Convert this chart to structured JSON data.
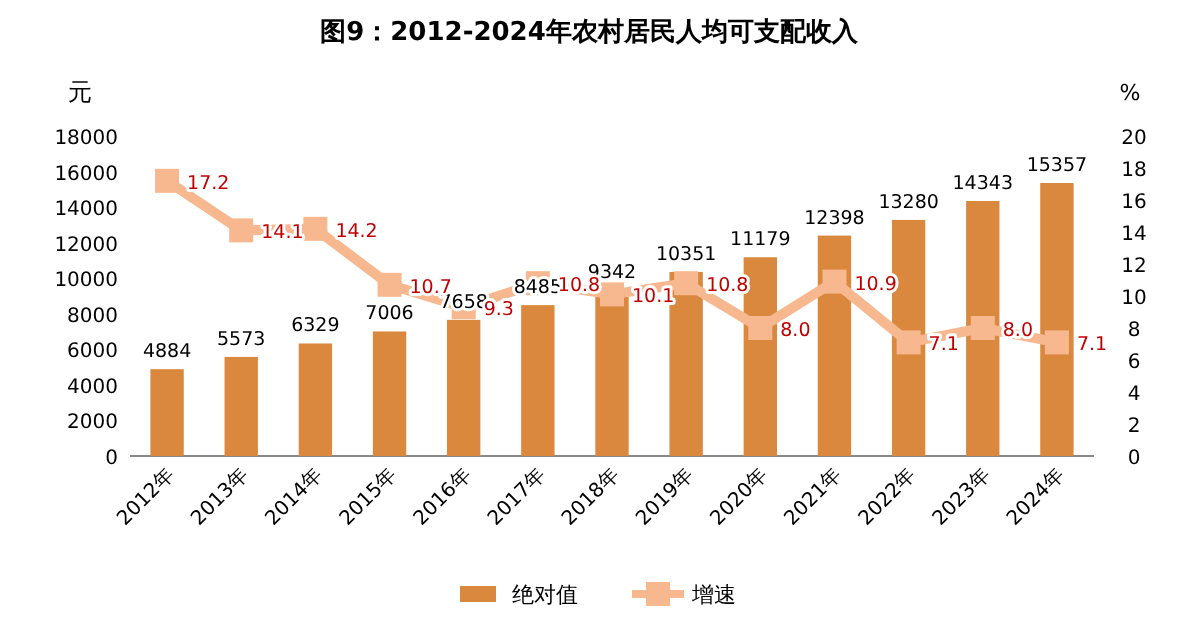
{
  "chart_data": {
    "type": "bar",
    "title": "图9：2012-2024年农村居民人均可支配收入",
    "ylabel": "元",
    "y2label": "%",
    "categories": [
      "2012年",
      "2013年",
      "2014年",
      "2015年",
      "2016年",
      "2017年",
      "2018年",
      "2019年",
      "2020年",
      "2021年",
      "2022年",
      "2023年",
      "2024年"
    ],
    "series": [
      {
        "name": "绝对值",
        "color": "#d9883e",
        "values": [
          4884,
          5573,
          6329,
          7006,
          7658,
          8485,
          9342,
          10351,
          11179,
          12398,
          13280,
          14343,
          15357
        ]
      },
      {
        "name": "增速",
        "type": "line",
        "axis": "y2",
        "color": "#f7b88f",
        "values": [
          17.2,
          14.1,
          14.2,
          10.7,
          9.3,
          10.8,
          10.1,
          10.8,
          8.0,
          10.9,
          7.1,
          8.0,
          7.1
        ],
        "value_labels": [
          "17.2",
          "14.1",
          "14.2",
          "10.7",
          "9.3",
          "10.8",
          "10.1",
          "10.8",
          "8.0",
          "10.9",
          "7.1",
          "8.0",
          "7.1"
        ]
      }
    ],
    "ylim": [
      0,
      18000
    ],
    "yticks": [
      0,
      2000,
      4000,
      6000,
      8000,
      10000,
      12000,
      14000,
      16000,
      18000
    ],
    "y2lim": [
      0,
      20
    ],
    "y2ticks": [
      0,
      2,
      4,
      6,
      8,
      10,
      12,
      14,
      16,
      18,
      20
    ],
    "marker": "square",
    "legend": "bottom",
    "data_labels": true
  }
}
